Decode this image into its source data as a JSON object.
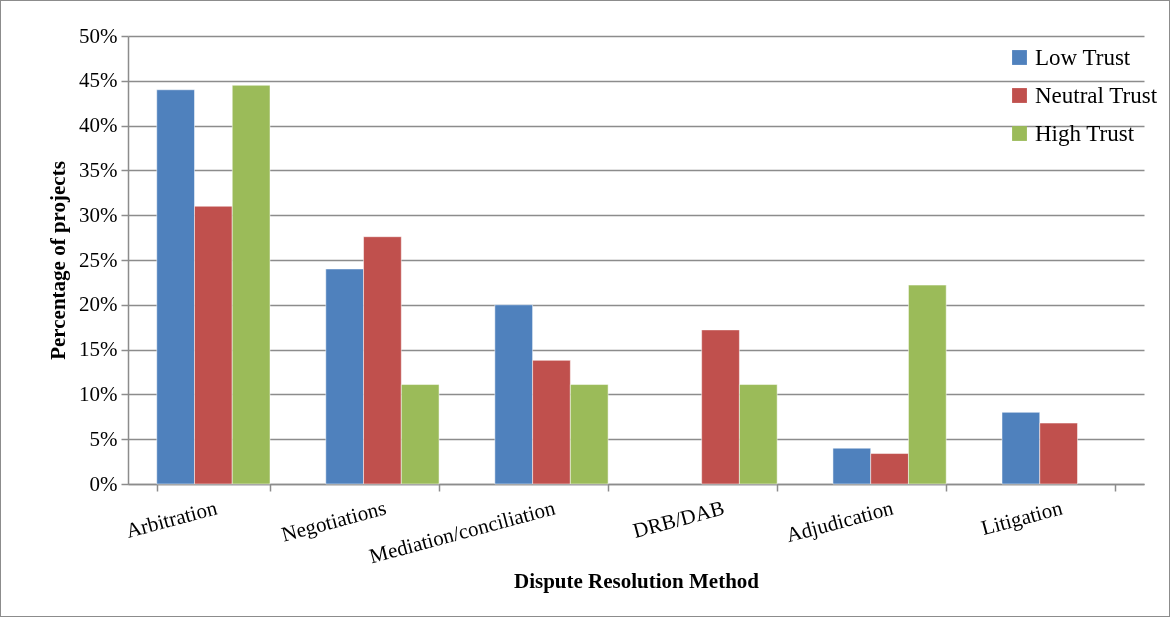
{
  "chart_data": {
    "type": "bar",
    "xlabel": "Dispute Resolution Method",
    "ylabel": "Percentage of projects",
    "categories": [
      "Arbitration",
      "Negotiations",
      "Mediation/conciliation",
      "DRB/DAB",
      "Adjudication",
      "Litigation"
    ],
    "series": [
      {
        "name": "Low Trust",
        "color": "#4f81bd",
        "values": [
          44,
          24,
          20,
          null,
          4,
          8
        ]
      },
      {
        "name": "Neutral Trust",
        "color": "#c0504d",
        "values": [
          31,
          27.6,
          13.8,
          17.2,
          3.4,
          6.8
        ]
      },
      {
        "name": "High Trust",
        "color": "#9bbb59",
        "values": [
          44.5,
          11.1,
          11.1,
          11.1,
          22.2,
          null
        ]
      }
    ],
    "ylim": [
      0,
      50
    ],
    "yticks": [
      {
        "value": 0,
        "label": "0%"
      },
      {
        "value": 5,
        "label": "5%"
      },
      {
        "value": 10,
        "label": "10%"
      },
      {
        "value": 15,
        "label": "15%"
      },
      {
        "value": 20,
        "label": "20%"
      },
      {
        "value": 25,
        "label": "25%"
      },
      {
        "value": 30,
        "label": "30%"
      },
      {
        "value": 35,
        "label": "35%"
      },
      {
        "value": 40,
        "label": "40%"
      },
      {
        "value": 45,
        "label": "45%"
      },
      {
        "value": 50,
        "label": "50%"
      }
    ],
    "grid": "y",
    "legend": "top right"
  }
}
